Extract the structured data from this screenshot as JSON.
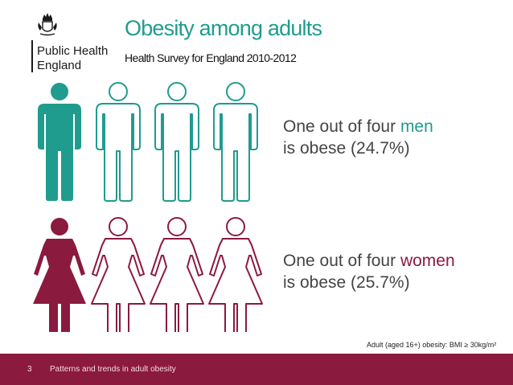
{
  "organization": {
    "name_line1": "Public Health",
    "name_line2": "England"
  },
  "header": {
    "title": "Obesity among adults",
    "subtitle": "Health Survey for England 2010-2012"
  },
  "men": {
    "text_before": "One out of four ",
    "highlight": "men",
    "line2": "is obese (24.7%)",
    "filled_count": 1,
    "total_count": 4,
    "color": "#1f9c8e"
  },
  "women": {
    "text_before": "One out of four ",
    "highlight": "women",
    "line2": "is obese (25.7%)",
    "filled_count": 1,
    "total_count": 4,
    "color": "#8b1a3f"
  },
  "footnote": "Adult (aged 16+) obesity: BMI ≥ 30kg/m²",
  "footer": {
    "slide_number": "3",
    "text": "Patterns and trends in adult obesity",
    "color": "#8b1a3f"
  },
  "icons": [
    "royal-crest-icon",
    "man-figure-icon",
    "woman-figure-icon"
  ]
}
